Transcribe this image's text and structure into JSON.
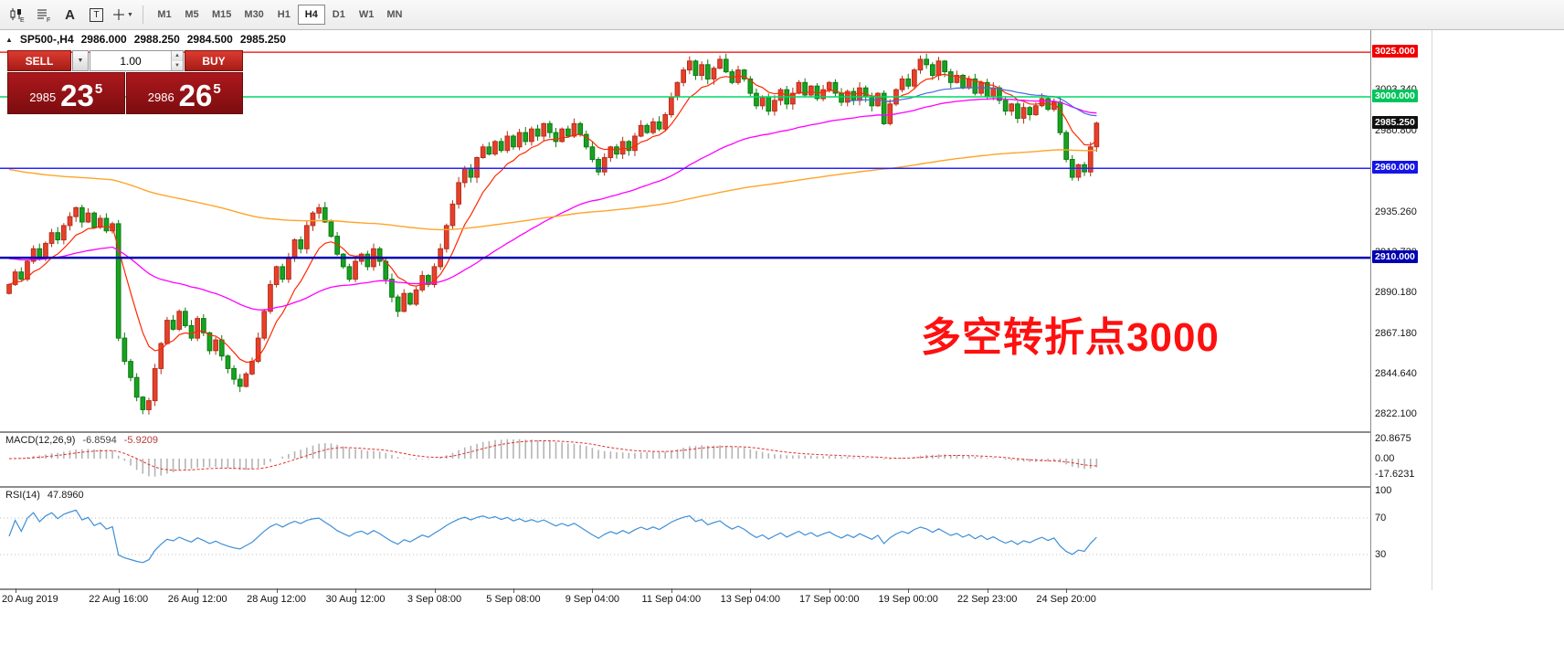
{
  "toolbar": {
    "timeframes": [
      "M1",
      "M5",
      "M15",
      "M30",
      "H1",
      "H4",
      "D1",
      "W1",
      "MN"
    ],
    "active_timeframe": "H4",
    "icon_a_glyph": "A",
    "icon_t_glyph": "T",
    "dropdown_caret": "▼"
  },
  "chart_header": {
    "collapse_arrow": "▲",
    "symbol": "SP500-,H4",
    "open": "2986.000",
    "high": "2988.250",
    "low": "2984.500",
    "close": "2985.250"
  },
  "trade_panel": {
    "sell_label": "SELL",
    "buy_label": "BUY",
    "volume_value": "1.00",
    "bid_prefix": "2985",
    "bid_big": "23",
    "bid_sup": "5",
    "ask_prefix": "2986",
    "ask_big": "26",
    "ask_sup": "5"
  },
  "macd": {
    "title": "MACD(12,26,9)",
    "value": "-6.8594",
    "signal_value": "-5.9209",
    "axis_max": "20.8675",
    "axis_zero": "0.00",
    "axis_min": "-17.6231"
  },
  "rsi": {
    "title": "RSI(14)",
    "value": "47.8960",
    "axis": [
      "100",
      "70",
      "30"
    ],
    "levels": [
      70,
      30
    ]
  },
  "time_axis": {
    "labels": [
      {
        "label": "20 Aug 2019",
        "index": 1
      },
      {
        "label": "22 Aug 16:00",
        "index": 18
      },
      {
        "label": "26 Aug 12:00",
        "index": 31
      },
      {
        "label": "28 Aug 12:00",
        "index": 44
      },
      {
        "label": "30 Aug 12:00",
        "index": 57
      },
      {
        "label": "3 Sep 08:00",
        "index": 70
      },
      {
        "label": "5 Sep 08:00",
        "index": 83
      },
      {
        "label": "9 Sep 04:00",
        "index": 96
      },
      {
        "label": "11 Sep 04:00",
        "index": 109
      },
      {
        "label": "13 Sep 04:00",
        "index": 122
      },
      {
        "label": "17 Sep 00:00",
        "index": 135
      },
      {
        "label": "19 Sep 00:00",
        "index": 148
      },
      {
        "label": "22 Sep 23:00",
        "index": 161
      },
      {
        "label": "24 Sep 20:00",
        "index": 174
      }
    ]
  },
  "annotation": {
    "text": "多空转折点3000",
    "color": "#fe1010"
  },
  "chart_data": {
    "type": "candlestick",
    "symbol": "SP500-",
    "timeframe": "H4",
    "ohlc_convention": "open equals previous close; highs and lows extend slightly beyond bodies; red = up, green = down (CN convention)",
    "first_open": 2890,
    "closes": [
      2895,
      2902,
      2898,
      2908,
      2915,
      2910,
      2918,
      2924,
      2920,
      2928,
      2933,
      2938,
      2930,
      2935,
      2927,
      2932,
      2925,
      2929,
      2865,
      2852,
      2843,
      2832,
      2825,
      2830,
      2848,
      2862,
      2875,
      2870,
      2880,
      2872,
      2865,
      2876,
      2868,
      2858,
      2864,
      2855,
      2848,
      2842,
      2838,
      2845,
      2852,
      2865,
      2880,
      2895,
      2905,
      2898,
      2910,
      2920,
      2915,
      2928,
      2935,
      2938,
      2930,
      2922,
      2912,
      2905,
      2898,
      2908,
      2912,
      2905,
      2915,
      2908,
      2898,
      2888,
      2880,
      2890,
      2884,
      2892,
      2900,
      2895,
      2905,
      2915,
      2928,
      2940,
      2952,
      2960,
      2955,
      2966,
      2972,
      2968,
      2975,
      2970,
      2978,
      2972,
      2980,
      2975,
      2982,
      2978,
      2985,
      2980,
      2975,
      2982,
      2978,
      2985,
      2979,
      2972,
      2965,
      2958,
      2966,
      2972,
      2968,
      2975,
      2970,
      2978,
      2984,
      2980,
      2986,
      2982,
      2990,
      3000,
      3008,
      3015,
      3020,
      3012,
      3018,
      3010,
      3016,
      3021,
      3014,
      3008,
      3015,
      3010,
      3002,
      2995,
      3000,
      2992,
      2998,
      3004,
      2996,
      3002,
      3008,
      3001,
      3006,
      2999,
      3004,
      3008,
      3002,
      2997,
      3003,
      2998,
      3005,
      3000,
      2995,
      3002,
      2985,
      2996,
      3004,
      3010,
      3006,
      3015,
      3021,
      3018,
      3012,
      3020,
      3014,
      3008,
      3012,
      3005,
      3010,
      3002,
      3008,
      3000,
      3005,
      2998,
      2992,
      2996,
      2988,
      2994,
      2990,
      2995,
      2999,
      2993,
      2997,
      2980,
      2965,
      2955,
      2962,
      2958,
      2972,
      2985.25
    ],
    "hlines": [
      {
        "price": 3025.0,
        "color": "#f20000",
        "width": 1.3,
        "label": "3025.000"
      },
      {
        "price": 3000.0,
        "color": "#00d966",
        "width": 1.5,
        "label": "3000.000"
      },
      {
        "price": 2960.0,
        "color": "#2424ff",
        "width": 1.5,
        "label": "2960.000"
      },
      {
        "price": 2910.0,
        "color": "#0000b0",
        "width": 2.5,
        "label": "2910.000"
      }
    ],
    "badges": [
      {
        "text": "3025.000",
        "price": 3025.0,
        "bg": "#f20000"
      },
      {
        "text": "3000.000",
        "price": 3000.0,
        "bg": "#00c55c"
      },
      {
        "text": "2985.250",
        "price": 2985.25,
        "bg": "#101010"
      },
      {
        "text": "2960.000",
        "price": 2960.0,
        "bg": "#1515e6"
      },
      {
        "text": "2910.000",
        "price": 2910.0,
        "bg": "#0000b0"
      }
    ],
    "y_ticks": [
      {
        "text": "3003.340",
        "price": 3003.34
      },
      {
        "text": "2980.800",
        "price": 2980.8
      },
      {
        "text": "2935.260",
        "price": 2935.26
      },
      {
        "text": "2912.720",
        "price": 2912.72
      },
      {
        "text": "2890.180",
        "price": 2890.18
      },
      {
        "text": "2867.180",
        "price": 2867.18
      },
      {
        "text": "2844.640",
        "price": 2844.64
      },
      {
        "text": "2822.100",
        "price": 2822.1
      }
    ],
    "moving_averages": [
      {
        "name": "ma-fast-red",
        "period": 9,
        "seed": 2895,
        "color": "#ff2800",
        "width": 1.2
      },
      {
        "name": "ma-mid-magenta",
        "period": 55,
        "seed": 2910,
        "color": "#ff00ff",
        "width": 1.3
      },
      {
        "name": "ma-slow-orange",
        "period": 200,
        "seed": 2960,
        "color": "#ffa428",
        "width": 1.4
      },
      {
        "name": "ma-blue",
        "period": 34,
        "seed": 2902,
        "color": "#4868e0",
        "width": 1.2,
        "draw_from": 138
      }
    ],
    "macd_params": [
      12,
      26,
      9
    ],
    "rsi_period": 14,
    "y_range_visible": [
      2812.9,
      3037.3
    ]
  }
}
